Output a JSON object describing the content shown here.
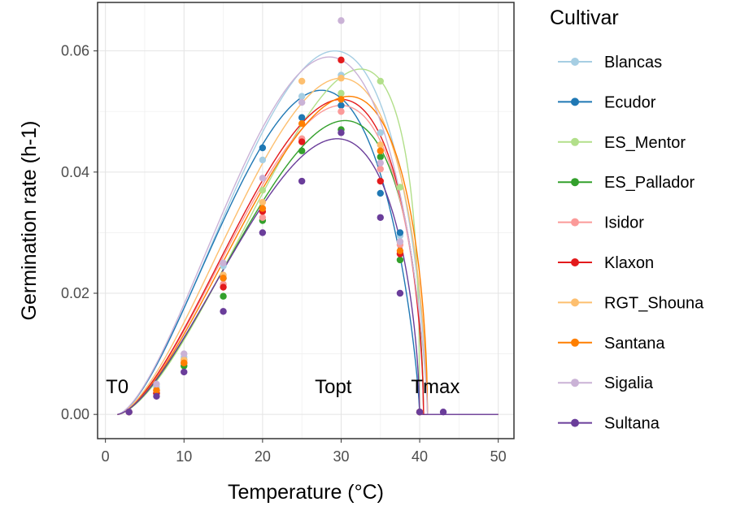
{
  "chart_data": {
    "type": "line",
    "title": "",
    "xlabel": "Temperature (°C)",
    "ylabel": "Germination rate (h-1)",
    "xlim": [
      -1,
      52
    ],
    "ylim": [
      -0.004,
      0.068
    ],
    "xticks": [
      0,
      10,
      20,
      30,
      40,
      50
    ],
    "xtick_labels": [
      "0",
      "10",
      "20",
      "30",
      "40",
      "50"
    ],
    "yticks": [
      0.0,
      0.02,
      0.04,
      0.06
    ],
    "ytick_labels": [
      "0.00",
      "0.02",
      "0.04",
      "0.06"
    ],
    "grid": true,
    "legend": {
      "title": "Cultivar",
      "position": "right"
    },
    "annotations": [
      {
        "text": "T0",
        "x": 1.5,
        "y": 0.0035
      },
      {
        "text": "Topt",
        "x": 29,
        "y": 0.0035
      },
      {
        "text": "Tmax",
        "x": 42,
        "y": 0.0035
      }
    ],
    "series": [
      {
        "name": "Blancas",
        "color": "#a6cee3",
        "t0": 1.5,
        "topt": 29.2,
        "tmax": 41.0,
        "peak": 0.06,
        "points": [
          [
            3,
            0.0004
          ],
          [
            6.5,
            0.0045
          ],
          [
            10,
            0.0095
          ],
          [
            15,
            0.0245
          ],
          [
            20,
            0.042
          ],
          [
            25,
            0.0525
          ],
          [
            30,
            0.056
          ],
          [
            35,
            0.0465
          ],
          [
            37.5,
            0.0295
          ],
          [
            40,
            0.0004
          ]
        ]
      },
      {
        "name": "Ecudor",
        "color": "#1f78b4",
        "t0": 1.5,
        "topt": 27.5,
        "tmax": 40.0,
        "peak": 0.0535,
        "points": [
          [
            3,
            0.0004
          ],
          [
            6.5,
            0.004
          ],
          [
            10,
            0.009
          ],
          [
            15,
            0.0225
          ],
          [
            20,
            0.044
          ],
          [
            25,
            0.049
          ],
          [
            30,
            0.051
          ],
          [
            35,
            0.0365
          ],
          [
            37.5,
            0.03
          ],
          [
            40,
            0.0004
          ]
        ]
      },
      {
        "name": "ES_Mentor",
        "color": "#b2df8a",
        "t0": 1.5,
        "topt": 32.5,
        "tmax": 40.0,
        "peak": 0.057,
        "points": [
          [
            3,
            0.0004
          ],
          [
            6.5,
            0.004
          ],
          [
            10,
            0.0085
          ],
          [
            15,
            0.0215
          ],
          [
            20,
            0.037
          ],
          [
            25,
            0.0455
          ],
          [
            30,
            0.053
          ],
          [
            35,
            0.055
          ],
          [
            37.5,
            0.0375
          ],
          [
            40,
            0.0004
          ]
        ]
      },
      {
        "name": "ES_Pallador",
        "color": "#33a02c",
        "t0": 1.5,
        "topt": 30.5,
        "tmax": 40.5,
        "peak": 0.0485,
        "points": [
          [
            3,
            0.0004
          ],
          [
            6.5,
            0.0035
          ],
          [
            10,
            0.008
          ],
          [
            15,
            0.0195
          ],
          [
            20,
            0.032
          ],
          [
            25,
            0.0435
          ],
          [
            30,
            0.047
          ],
          [
            35,
            0.0425
          ],
          [
            37.5,
            0.0255
          ],
          [
            40,
            0.0004
          ]
        ]
      },
      {
        "name": "Isidor",
        "color": "#fb9a99",
        "t0": 1.5,
        "topt": 30.0,
        "tmax": 40.5,
        "peak": 0.051,
        "points": [
          [
            3,
            0.0004
          ],
          [
            6.5,
            0.004
          ],
          [
            10,
            0.009
          ],
          [
            15,
            0.0215
          ],
          [
            20,
            0.0325
          ],
          [
            25,
            0.0455
          ],
          [
            30,
            0.05
          ],
          [
            35,
            0.0405
          ],
          [
            37.5,
            0.028
          ],
          [
            40,
            0.0004
          ]
        ]
      },
      {
        "name": "Klaxon",
        "color": "#e31a1c",
        "t0": 1.5,
        "topt": 30.0,
        "tmax": 40.5,
        "peak": 0.052,
        "points": [
          [
            3,
            0.0004
          ],
          [
            6.5,
            0.0035
          ],
          [
            10,
            0.0085
          ],
          [
            15,
            0.021
          ],
          [
            20,
            0.0335
          ],
          [
            25,
            0.045
          ],
          [
            30,
            0.0585
          ],
          [
            35,
            0.0385
          ],
          [
            37.5,
            0.0265
          ],
          [
            40,
            0.0004
          ]
        ]
      },
      {
        "name": "RGT_Shouna",
        "color": "#fdbf6f",
        "t0": 1.5,
        "topt": 30.0,
        "tmax": 41.0,
        "peak": 0.0555,
        "points": [
          [
            3,
            0.0004
          ],
          [
            6.5,
            0.004
          ],
          [
            10,
            0.009
          ],
          [
            15,
            0.023
          ],
          [
            20,
            0.035
          ],
          [
            25,
            0.055
          ],
          [
            30,
            0.0555
          ],
          [
            35,
            0.0445
          ],
          [
            37.5,
            0.0285
          ],
          [
            40,
            0.0004
          ]
        ]
      },
      {
        "name": "Santana",
        "color": "#ff7f00",
        "t0": 1.5,
        "topt": 31.0,
        "tmax": 41.0,
        "peak": 0.0525,
        "points": [
          [
            3,
            0.0004
          ],
          [
            6.5,
            0.004
          ],
          [
            10,
            0.0085
          ],
          [
            15,
            0.0225
          ],
          [
            20,
            0.034
          ],
          [
            25,
            0.048
          ],
          [
            30,
            0.052
          ],
          [
            35,
            0.0435
          ],
          [
            37.5,
            0.027
          ],
          [
            40,
            0.0004
          ]
        ]
      },
      {
        "name": "Sigalia",
        "color": "#cab2d6",
        "t0": 1.5,
        "topt": 28.5,
        "tmax": 41.0,
        "peak": 0.059,
        "points": [
          [
            3,
            0.0004
          ],
          [
            6.5,
            0.005
          ],
          [
            10,
            0.01
          ],
          [
            15,
            0.025
          ],
          [
            20,
            0.039
          ],
          [
            25,
            0.0515
          ],
          [
            30,
            0.065
          ],
          [
            35,
            0.0415
          ],
          [
            37.5,
            0.0285
          ],
          [
            40,
            0.0004
          ]
        ]
      },
      {
        "name": "Sultana",
        "color": "#6a3d9a",
        "t0": 1.5,
        "topt": 29.5,
        "tmax": 40.0,
        "peak": 0.0455,
        "points": [
          [
            3,
            0.0004
          ],
          [
            6.5,
            0.003
          ],
          [
            10,
            0.007
          ],
          [
            15,
            0.017
          ],
          [
            20,
            0.03
          ],
          [
            25,
            0.0385
          ],
          [
            30,
            0.0465
          ],
          [
            35,
            0.0325
          ],
          [
            37.5,
            0.02
          ],
          [
            40,
            0.0004
          ],
          [
            43,
            0.0004
          ]
        ]
      }
    ]
  }
}
